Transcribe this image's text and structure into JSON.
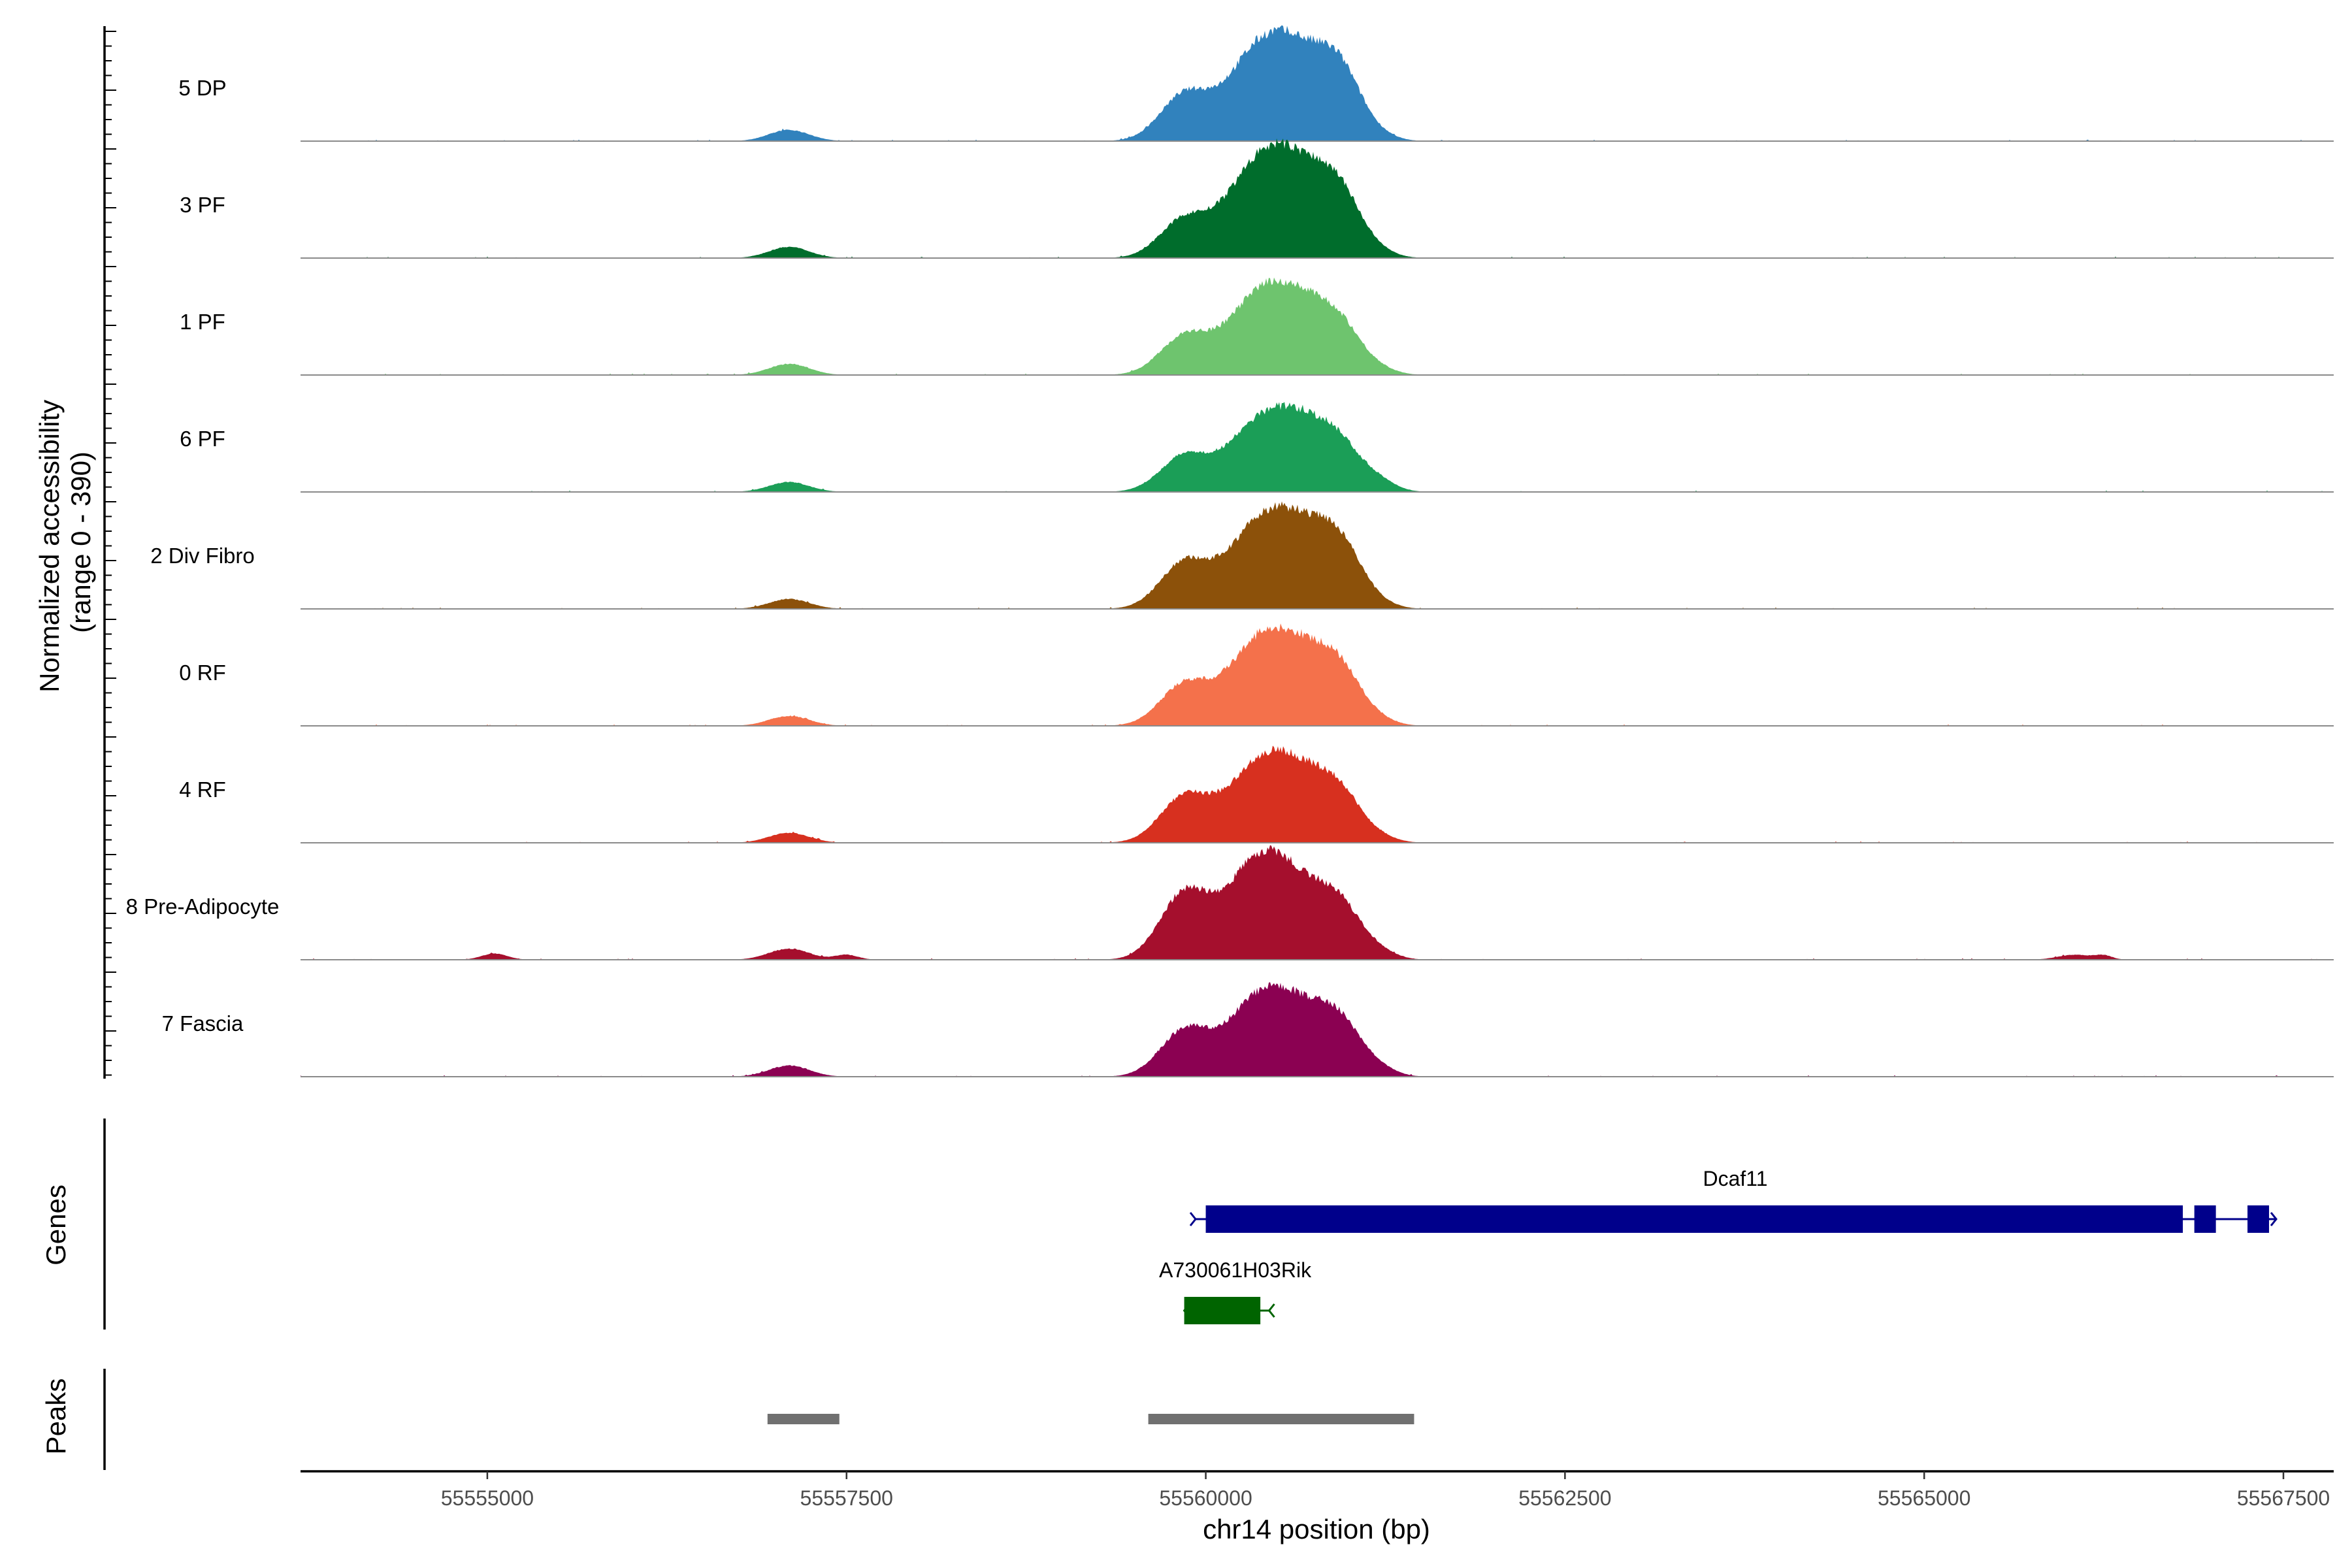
{
  "chart_data": {
    "type": "area",
    "title": "",
    "xlabel": "chr14 position (bp)",
    "ylabel": "Normalized accessibility\n(range 0 - 390)",
    "xlim": [
      55553700,
      55567850
    ],
    "x_ticks": [
      55555000,
      55557500,
      55560000,
      55562500,
      55565000,
      55567500
    ],
    "x_tick_labels": [
      "55555000",
      "55557500",
      "55560000",
      "55562500",
      "55565000",
      "55567500"
    ],
    "ylim": [
      0,
      390
    ],
    "tracks": [
      {
        "name": "5 DP",
        "color": "#3182bd",
        "peaks": [
          [
            55557100,
            0.09,
            140
          ],
          [
            55559850,
            0.36,
            170
          ],
          [
            55560350,
            0.64,
            220
          ],
          [
            55560700,
            0.58,
            220
          ],
          [
            55560950,
            0.35,
            140
          ],
          [
            55561200,
            0.04,
            120
          ]
        ]
      },
      {
        "name": "3 PF",
        "color": "#006d2c",
        "peaks": [
          [
            55557100,
            0.09,
            140
          ],
          [
            55559850,
            0.3,
            170
          ],
          [
            55560350,
            0.66,
            220
          ],
          [
            55560700,
            0.6,
            220
          ],
          [
            55560950,
            0.3,
            140
          ],
          [
            55561200,
            0.04,
            120
          ]
        ]
      },
      {
        "name": "1 PF",
        "color": "#6ec46e",
        "peaks": [
          [
            55557100,
            0.09,
            140
          ],
          [
            55559850,
            0.3,
            170
          ],
          [
            55560350,
            0.55,
            220
          ],
          [
            55560700,
            0.49,
            220
          ],
          [
            55560950,
            0.22,
            140
          ],
          [
            55561200,
            0.04,
            120
          ]
        ]
      },
      {
        "name": "6 PF",
        "color": "#1b9e57",
        "peaks": [
          [
            55557100,
            0.08,
            140
          ],
          [
            55559850,
            0.28,
            170
          ],
          [
            55560350,
            0.47,
            220
          ],
          [
            55560700,
            0.48,
            220
          ],
          [
            55560950,
            0.2,
            140
          ],
          [
            55561200,
            0.08,
            120
          ]
        ]
      },
      {
        "name": "2 Div Fibro",
        "color": "#8c510a",
        "peaks": [
          [
            55557100,
            0.08,
            140
          ],
          [
            55559850,
            0.36,
            170
          ],
          [
            55560350,
            0.58,
            220
          ],
          [
            55560700,
            0.55,
            220
          ],
          [
            55560950,
            0.32,
            140
          ],
          [
            55561200,
            0.04,
            120
          ]
        ]
      },
      {
        "name": "0 RF",
        "color": "#f4714b",
        "peaks": [
          [
            55557100,
            0.08,
            140
          ],
          [
            55559850,
            0.32,
            170
          ],
          [
            55560350,
            0.58,
            220
          ],
          [
            55560700,
            0.51,
            220
          ],
          [
            55560950,
            0.26,
            140
          ],
          [
            55561200,
            0.04,
            120
          ]
        ]
      },
      {
        "name": "4 RF",
        "color": "#d7301f",
        "peaks": [
          [
            55557100,
            0.08,
            140
          ],
          [
            55559850,
            0.36,
            170
          ],
          [
            55560350,
            0.55,
            220
          ],
          [
            55560700,
            0.47,
            220
          ],
          [
            55560950,
            0.22,
            140
          ],
          [
            55561200,
            0.04,
            120
          ]
        ]
      },
      {
        "name": "8 Pre-Adipocyte",
        "color": "#a50f2d",
        "peaks": [
          [
            55555050,
            0.05,
            90
          ],
          [
            55557100,
            0.09,
            140
          ],
          [
            55557500,
            0.04,
            80
          ],
          [
            55559850,
            0.52,
            170
          ],
          [
            55560350,
            0.72,
            220
          ],
          [
            55560700,
            0.45,
            220
          ],
          [
            55560950,
            0.26,
            140
          ],
          [
            55561200,
            0.06,
            120
          ],
          [
            55566050,
            0.04,
            120
          ],
          [
            55566250,
            0.03,
            60
          ]
        ]
      },
      {
        "name": "7 Fascia",
        "color": "#8b0152",
        "peaks": [
          [
            55557100,
            0.09,
            140
          ],
          [
            55559850,
            0.36,
            170
          ],
          [
            55560350,
            0.55,
            220
          ],
          [
            55560700,
            0.45,
            220
          ],
          [
            55560950,
            0.26,
            140
          ],
          [
            55561200,
            0.06,
            120
          ]
        ]
      }
    ],
    "genes": [
      {
        "name": "Dcaf11",
        "color": "#00008b",
        "start": 55559920,
        "end": 55567450,
        "exons": [
          [
            55560000,
            55566800
          ],
          [
            55566880,
            55567030
          ],
          [
            55567250,
            55567400
          ]
        ],
        "strand": "+"
      },
      {
        "name": "A730061H03Rik",
        "color": "#006400",
        "start": 55559850,
        "end": 55560450,
        "exons": [
          [
            55559850,
            55560380
          ]
        ],
        "strand": "-"
      }
    ],
    "peak_regions": [
      [
        55556950,
        55557450
      ],
      [
        55559600,
        55561450
      ]
    ],
    "panel_labels": {
      "genes": "Genes",
      "peaks": "Peaks"
    }
  }
}
